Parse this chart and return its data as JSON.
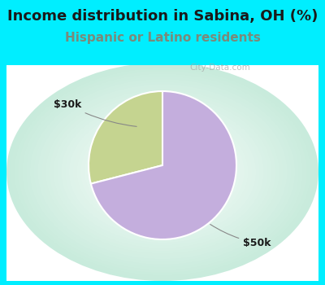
{
  "title": "Income distribution in Sabina, OH (%)",
  "subtitle": "Hispanic or Latino residents",
  "slices": [
    {
      "label": "$30k",
      "value": 29,
      "color": "#c5d490"
    },
    {
      "label": "$50k",
      "value": 71,
      "color": "#c4aedd"
    }
  ],
  "title_fontsize": 13,
  "subtitle_fontsize": 11,
  "title_color": "#1a1a1a",
  "subtitle_color": "#7a8a7a",
  "bg_cyan": "#00eeff",
  "watermark": "City-Data.com",
  "label_fontsize": 9,
  "startangle": 90,
  "chart_bg_center": "#ffffff",
  "chart_bg_edge": "#c8eedd"
}
